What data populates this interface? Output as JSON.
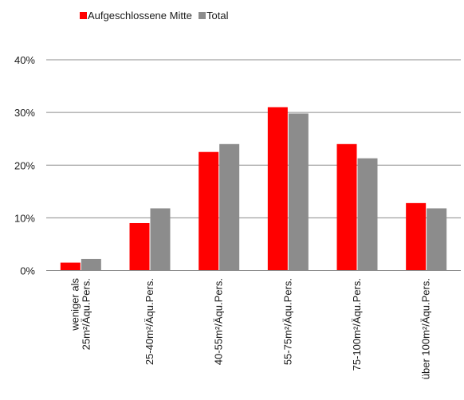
{
  "chart_data": {
    "type": "bar",
    "categories": [
      [
        "weniger als",
        "25m²/Äqu.Pers."
      ],
      [
        "25-40m²/Äqu.Pers."
      ],
      [
        "40-55m²/Äqu.Pers."
      ],
      [
        "55-75m²/Äqu.Pers."
      ],
      [
        "75-100m²/Äqu.Pers."
      ],
      [
        "über 100m²/Äqu.Pers."
      ]
    ],
    "series": [
      {
        "name": "Aufgeschlossene Mitte",
        "color": "#ff0000",
        "values": [
          1.5,
          9,
          22.5,
          31,
          24,
          12.8
        ]
      },
      {
        "name": "Total",
        "color": "#8c8c8c",
        "values": [
          2.2,
          11.8,
          24,
          29.8,
          21.3,
          11.8
        ]
      }
    ],
    "ylim": [
      0,
      40
    ],
    "yticks": [
      0,
      10,
      20,
      30,
      40
    ],
    "ytick_labels": [
      "0%",
      "10%",
      "20%",
      "30%",
      "40%"
    ],
    "grid": true,
    "legend_position": "top",
    "title": "",
    "xlabel": "",
    "ylabel": ""
  }
}
